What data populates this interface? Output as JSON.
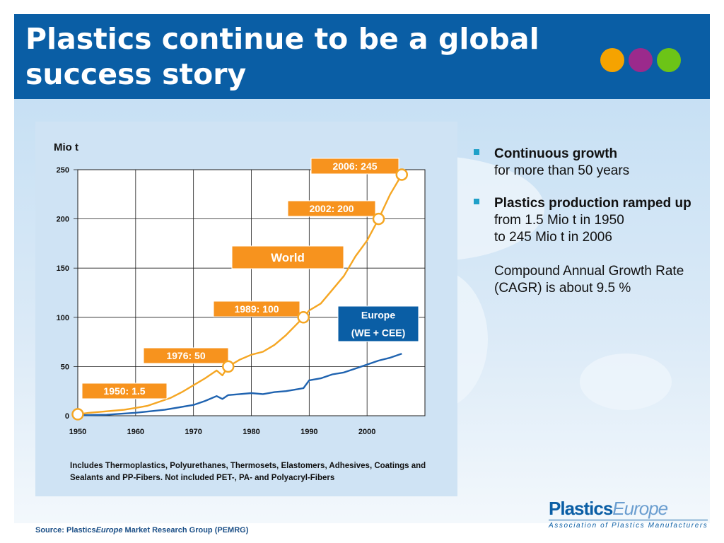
{
  "title": "Plastics continue to be a global success story",
  "colors": {
    "header": "#0a5ea5",
    "world_line": "#f5a623",
    "europe_line": "#1f63b0",
    "label_box": "#f7931e",
    "dot_1": "#f5a300",
    "dot_2": "#9b2a8c",
    "dot_3": "#6cc417"
  },
  "chart_data": {
    "type": "line",
    "ylabel": "Mio t",
    "xlim": [
      1950,
      2010
    ],
    "ylim": [
      0,
      250
    ],
    "x_ticks": [
      1950,
      1960,
      1970,
      1980,
      1990,
      2000
    ],
    "y_ticks": [
      0,
      50,
      100,
      150,
      200,
      250
    ],
    "grid": true,
    "series": [
      {
        "name": "World",
        "x": [
          1950,
          1952,
          1954,
          1956,
          1958,
          1960,
          1962,
          1964,
          1966,
          1968,
          1970,
          1972,
          1974,
          1975,
          1976,
          1978,
          1980,
          1982,
          1984,
          1986,
          1988,
          1989,
          1990,
          1992,
          1994,
          1996,
          1998,
          2000,
          2002,
          2004,
          2006
        ],
        "values": [
          1.5,
          3,
          4,
          5,
          6,
          8,
          10,
          14,
          18,
          24,
          31,
          38,
          46,
          41,
          50,
          57,
          62,
          65,
          72,
          82,
          94,
          100,
          107,
          114,
          128,
          142,
          162,
          178,
          200,
          225,
          245
        ]
      },
      {
        "name": "Europe (WE + CEE)",
        "x": [
          1950,
          1955,
          1960,
          1965,
          1970,
          1972,
          1974,
          1975,
          1976,
          1978,
          1980,
          1982,
          1984,
          1986,
          1988,
          1989,
          1990,
          1992,
          1994,
          1996,
          1998,
          2000,
          2002,
          2004,
          2006
        ],
        "values": [
          0.5,
          1,
          3,
          6,
          11,
          15,
          20,
          17,
          21,
          22,
          23,
          22,
          24,
          25,
          27,
          28,
          36,
          38,
          42,
          44,
          48,
          52,
          56,
          59,
          63
        ]
      }
    ],
    "annotations": [
      {
        "text": "2006: 245",
        "x": 2006,
        "y": 245
      },
      {
        "text": "2002: 200",
        "x": 2002,
        "y": 200
      },
      {
        "text": "1989: 100",
        "x": 1989,
        "y": 100
      },
      {
        "text": "1976: 50",
        "x": 1976,
        "y": 50
      },
      {
        "text": "1950: 1.5",
        "x": 1950,
        "y": 1.5
      }
    ],
    "series_labels": {
      "world": "World",
      "europe_line1": "Europe",
      "europe_line2": "(WE + CEE)"
    }
  },
  "caption": "Includes Thermoplastics, Polyurethanes, Thermosets, Elastomers, Adhesives, Coatings and Sealants and PP-Fibers. Not included PET-, PA- and Polyacryl-Fibers",
  "bullets": [
    {
      "head": "Continuous growth",
      "lines": [
        "for more than 50 years"
      ]
    },
    {
      "head": "Plastics production ramped up",
      "lines": [
        "from 1.5 Mio t in 1950",
        "to 245 Mio t in 2006"
      ],
      "extra": "Compound Annual Growth Rate (CAGR) is about 9.5 %"
    }
  ],
  "logo": {
    "word_a": "Plastics",
    "word_b": "Europe",
    "tagline": "Association of Plastics Manufacturers"
  },
  "source": {
    "prefix": "Source: Plastics",
    "italic": "Europe",
    "suffix": " Market Research Group (PEMRG)"
  }
}
